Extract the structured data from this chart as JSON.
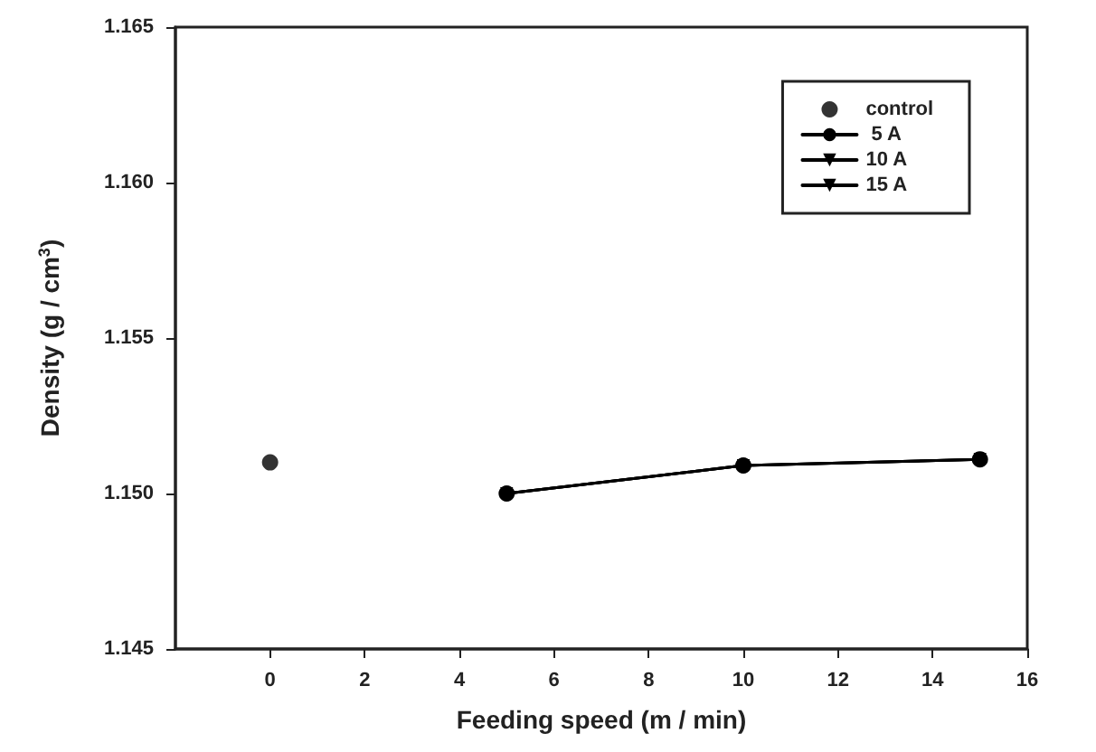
{
  "chart_data": {
    "type": "line",
    "xlabel": "Feeding speed (m / min)",
    "ylabel": "Density (g / cm$^{3}$)",
    "xlim": [
      -2,
      16
    ],
    "xticks": [
      0,
      2,
      4,
      6,
      8,
      10,
      12,
      14,
      16
    ],
    "ylim": [
      1.145,
      1.165
    ],
    "yticks": [
      {
        "value": 1.145,
        "label": "1.145"
      },
      {
        "value": 1.15,
        "label": "1.150"
      },
      {
        "value": 1.155,
        "label": "1.155"
      },
      {
        "value": 1.16,
        "label": "1.160"
      },
      {
        "value": 1.165,
        "label": "1.165"
      }
    ],
    "grid": false,
    "legend": "top right",
    "series": [
      {
        "name": "control",
        "type": "scatter",
        "color": "#000000",
        "marker": "circle",
        "x": [
          0
        ],
        "values": [
          1.151
        ]
      },
      {
        "name": " 5 A",
        "color": "#000000",
        "marker": "circle",
        "x": [
          5,
          10,
          15
        ],
        "values": [
          1.15,
          1.1509,
          1.1511
        ]
      },
      {
        "name": "10 A",
        "color": "#000000",
        "marker": "triangle",
        "x": [
          5,
          10,
          15
        ],
        "values": [
          1.15,
          1.1509,
          1.1511
        ]
      },
      {
        "name": "15 A",
        "color": "#000000",
        "marker": "triangle",
        "x": [
          5,
          10,
          15
        ],
        "values": [
          1.15,
          1.1509,
          1.1511
        ]
      }
    ]
  }
}
